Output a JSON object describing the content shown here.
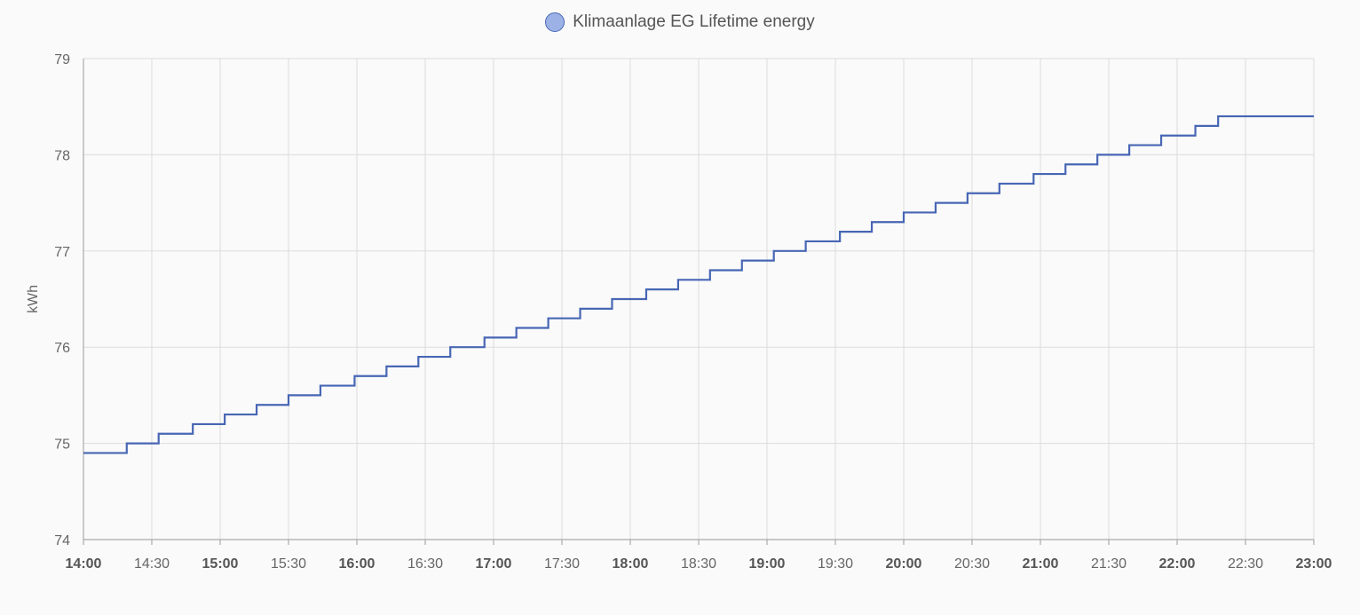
{
  "chart_data": {
    "type": "line",
    "step": true,
    "legend": {
      "position": "top-center",
      "entries": [
        {
          "label": "Klimaanlage EG Lifetime energy",
          "color": "#4766b4"
        }
      ]
    },
    "ylabel": "kWh",
    "xlabel": "",
    "ylim": [
      74,
      79
    ],
    "yticks": [
      74,
      75,
      76,
      77,
      78,
      79
    ],
    "xlim": [
      "14:00",
      "23:00"
    ],
    "xticks": [
      {
        "label": "14:00",
        "bold": true
      },
      {
        "label": "14:30",
        "bold": false
      },
      {
        "label": "15:00",
        "bold": true
      },
      {
        "label": "15:30",
        "bold": false
      },
      {
        "label": "16:00",
        "bold": true
      },
      {
        "label": "16:30",
        "bold": false
      },
      {
        "label": "17:00",
        "bold": true
      },
      {
        "label": "17:30",
        "bold": false
      },
      {
        "label": "18:00",
        "bold": true
      },
      {
        "label": "18:30",
        "bold": false
      },
      {
        "label": "19:00",
        "bold": true
      },
      {
        "label": "19:30",
        "bold": false
      },
      {
        "label": "20:00",
        "bold": true
      },
      {
        "label": "20:30",
        "bold": false
      },
      {
        "label": "21:00",
        "bold": true
      },
      {
        "label": "21:30",
        "bold": false
      },
      {
        "label": "22:00",
        "bold": true
      },
      {
        "label": "22:30",
        "bold": false
      },
      {
        "label": "23:00",
        "bold": true
      }
    ],
    "grid": true,
    "series": [
      {
        "name": "Klimaanlage EG Lifetime energy",
        "color": "#4766b4",
        "x": [
          "14:00",
          "14:19",
          "14:33",
          "14:48",
          "15:02",
          "15:16",
          "15:30",
          "15:44",
          "15:59",
          "16:13",
          "16:27",
          "16:41",
          "16:56",
          "17:10",
          "17:24",
          "17:38",
          "17:52",
          "18:07",
          "18:21",
          "18:35",
          "18:49",
          "19:03",
          "19:17",
          "19:32",
          "19:46",
          "20:00",
          "20:14",
          "20:28",
          "20:42",
          "20:57",
          "21:11",
          "21:25",
          "21:39",
          "21:53",
          "22:08",
          "22:18",
          "23:00"
        ],
        "y": [
          74.9,
          75.0,
          75.1,
          75.2,
          75.3,
          75.4,
          75.5,
          75.6,
          75.7,
          75.8,
          75.9,
          76.0,
          76.1,
          76.2,
          76.3,
          76.4,
          76.5,
          76.6,
          76.7,
          76.8,
          76.9,
          77.0,
          77.1,
          77.2,
          77.3,
          77.4,
          77.5,
          77.6,
          77.7,
          77.8,
          77.9,
          78.0,
          78.1,
          78.2,
          78.3,
          78.4,
          78.4
        ]
      }
    ]
  }
}
